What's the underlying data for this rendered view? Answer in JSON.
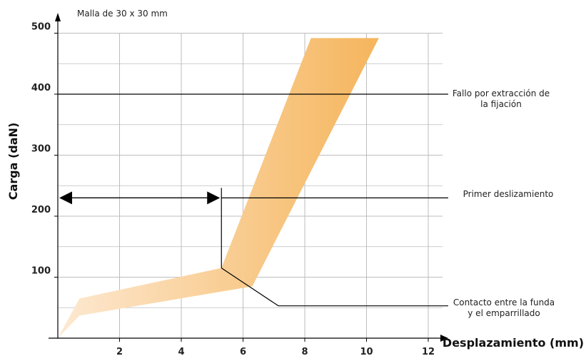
{
  "chart_data": {
    "type": "area",
    "subtitle": "Malla de 30 x 30 mm",
    "xlabel": "Desplazamiento (mm)",
    "ylabel": "Carga (daN)",
    "xlim": [
      0,
      12.5
    ],
    "ylim": [
      0,
      500
    ],
    "x_ticks": [
      2,
      4,
      6,
      8,
      10,
      12
    ],
    "y_ticks": [
      100,
      200,
      300,
      400,
      500
    ],
    "grid": true,
    "band": {
      "upper": [
        [
          0,
          0
        ],
        [
          0.7,
          65
        ],
        [
          5.3,
          115
        ],
        [
          8.2,
          492
        ],
        [
          10.4,
          492
        ]
      ],
      "lower": [
        [
          0,
          0
        ],
        [
          0.7,
          37
        ],
        [
          6.3,
          85
        ],
        [
          10.4,
          492
        ]
      ]
    },
    "annotations": {
      "failure": {
        "label": "Fallo por extracción de la fijación",
        "line1": "Fallo por extracción de",
        "line2": "la fijación",
        "y": 400
      },
      "slip": {
        "label": "Primer deslizamiento",
        "y": 230,
        "x_end": 5.3
      },
      "contact": {
        "label": "Contacto entre la funda y el emparrillado",
        "line1": "Contacto entre la funda",
        "line2": "y el emparrillado",
        "x": 5.3,
        "y": 115,
        "y_end": 53
      }
    }
  },
  "colors": {
    "band_light": "#fde9d2",
    "band_dark": "#f5b55c",
    "grid": "#bdbdbd",
    "axis": "#000000"
  }
}
